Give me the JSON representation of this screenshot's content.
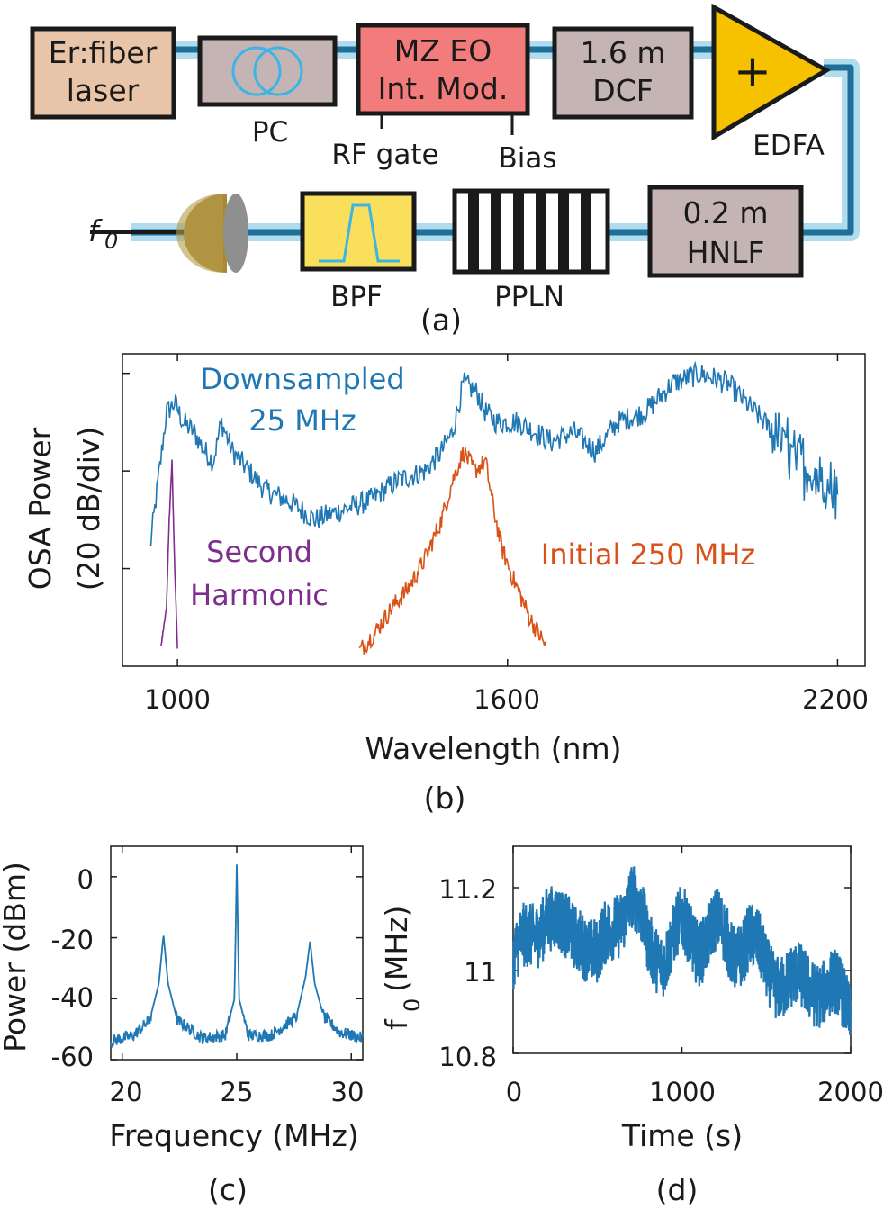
{
  "setup": {
    "laser": [
      "Er:fiber",
      "laser"
    ],
    "pc": "PC",
    "modulator": [
      "MZ EO",
      "Int. Mod."
    ],
    "rf_gate": "RF gate",
    "bias": "Bias",
    "dcf": [
      "1.6 m",
      "DCF"
    ],
    "edfa_symbol": "+",
    "edfa": "EDFA",
    "hnlf": [
      "0.2 m",
      "HNLF"
    ],
    "ppln": "PPLN",
    "bpf": "BPF",
    "detector_output": "f",
    "detector_output_sub": "0",
    "caption": "(a)",
    "colors": {
      "laser": "#e8c4a8",
      "grey": "#c4b4b4",
      "modulator": "#f27b7b",
      "edfa": "#f6c200",
      "bpf": "#f9df5c",
      "fiber": "#1e6f9a",
      "fiber_glow": "#8fcde6",
      "pc_loops": "#3cb4e6",
      "detector": "#a88a35"
    }
  },
  "chart_data": [
    {
      "panel": "b",
      "type": "line",
      "xlabel": "Wavelength (nm)",
      "ylabel": [
        "OSA Power",
        "(20 dB/div)"
      ],
      "x_ticks": [
        "1000",
        "1600",
        "2200"
      ],
      "xlim": [
        900,
        2250
      ],
      "ylim_divs": [
        0,
        3.2
      ],
      "caption": "(b)",
      "series": [
        {
          "name": "Downsampled 25 MHz",
          "label_lines": [
            "Downsampled",
            "25 MHz"
          ],
          "color": "#1f77b4",
          "x": [
            950,
            965,
            980,
            995,
            1010,
            1030,
            1050,
            1065,
            1080,
            1100,
            1130,
            1160,
            1200,
            1250,
            1300,
            1350,
            1400,
            1450,
            1480,
            1500,
            1520,
            1545,
            1560,
            1580,
            1620,
            1680,
            1720,
            1760,
            1800,
            1850,
            1900,
            1950,
            2000,
            2050,
            2100,
            2150,
            2200
          ],
          "y": [
            1.2,
            1.9,
            2.6,
            2.7,
            2.5,
            2.4,
            2.2,
            2.1,
            2.5,
            2.2,
            2.0,
            1.8,
            1.7,
            1.5,
            1.6,
            1.7,
            1.9,
            2.0,
            2.2,
            2.4,
            2.9,
            2.8,
            2.6,
            2.5,
            2.5,
            2.3,
            2.4,
            2.2,
            2.5,
            2.6,
            2.9,
            3.0,
            2.9,
            2.6,
            2.3,
            2.0,
            1.8
          ]
        },
        {
          "name": "Initial 250 MHz",
          "label_lines": [
            "Initial 250 MHz"
          ],
          "color": "#d95319",
          "x": [
            1330,
            1360,
            1390,
            1420,
            1450,
            1480,
            1500,
            1520,
            1540,
            1560,
            1575,
            1590,
            1610,
            1640,
            1670
          ],
          "y": [
            0.15,
            0.35,
            0.6,
            0.8,
            1.1,
            1.5,
            1.9,
            2.2,
            2.0,
            2.1,
            1.6,
            1.2,
            0.9,
            0.5,
            0.2
          ]
        },
        {
          "name": "Second Harmonic",
          "label_lines": [
            "Second",
            "Harmonic"
          ],
          "color": "#7e2f8e",
          "x": [
            970,
            980,
            985,
            990,
            995,
            1000
          ],
          "y": [
            0.2,
            0.6,
            1.5,
            2.1,
            1.0,
            0.2
          ]
        }
      ]
    },
    {
      "panel": "c",
      "type": "line",
      "xlabel": "Frequency (MHz)",
      "ylabel": "Power (dBm)",
      "x_ticks": [
        "20",
        "25",
        "30"
      ],
      "y_ticks": [
        "0",
        "-20",
        "-40",
        "-60"
      ],
      "xlim": [
        19.5,
        30.5
      ],
      "ylim": [
        -60,
        10
      ],
      "caption": "(c)",
      "series": [
        {
          "color": "#1f77b4",
          "x": [
            19.5,
            20.5,
            21.2,
            21.6,
            21.8,
            22.0,
            22.4,
            23.5,
            24.5,
            24.9,
            25.0,
            25.1,
            25.5,
            26.5,
            27.6,
            28.0,
            28.2,
            28.4,
            28.8,
            29.5,
            30.5
          ],
          "y": [
            -54,
            -52,
            -47,
            -35,
            -19,
            -35,
            -47,
            -53,
            -52,
            -40,
            4,
            -40,
            -52,
            -52,
            -46,
            -33,
            -21,
            -35,
            -46,
            -51,
            -53
          ]
        }
      ]
    },
    {
      "panel": "d",
      "type": "scatter",
      "xlabel": "Time (s)",
      "ylabel": "f",
      "ylabel_sub": "0",
      "ylabel_unit": "(MHz)",
      "x_ticks": [
        "0",
        "1000",
        "2000"
      ],
      "y_ticks": [
        "11.2",
        "11",
        "10.8"
      ],
      "xlim": [
        0,
        2000
      ],
      "ylim": [
        10.8,
        11.3
      ],
      "caption": "(d)",
      "trend_t": [
        0,
        100,
        200,
        300,
        400,
        500,
        600,
        700,
        800,
        900,
        1000,
        1100,
        1200,
        1300,
        1400,
        1500,
        1600,
        1700,
        1800,
        1900,
        2000
      ],
      "trend_f": [
        11.03,
        11.07,
        11.15,
        11.08,
        11.1,
        11.02,
        11.12,
        11.18,
        11.06,
        11.04,
        11.1,
        11.07,
        11.1,
        11.05,
        11.08,
        11.0,
        10.98,
        10.96,
        10.97,
        10.95,
        10.9
      ],
      "color": "#1f77b4"
    }
  ]
}
